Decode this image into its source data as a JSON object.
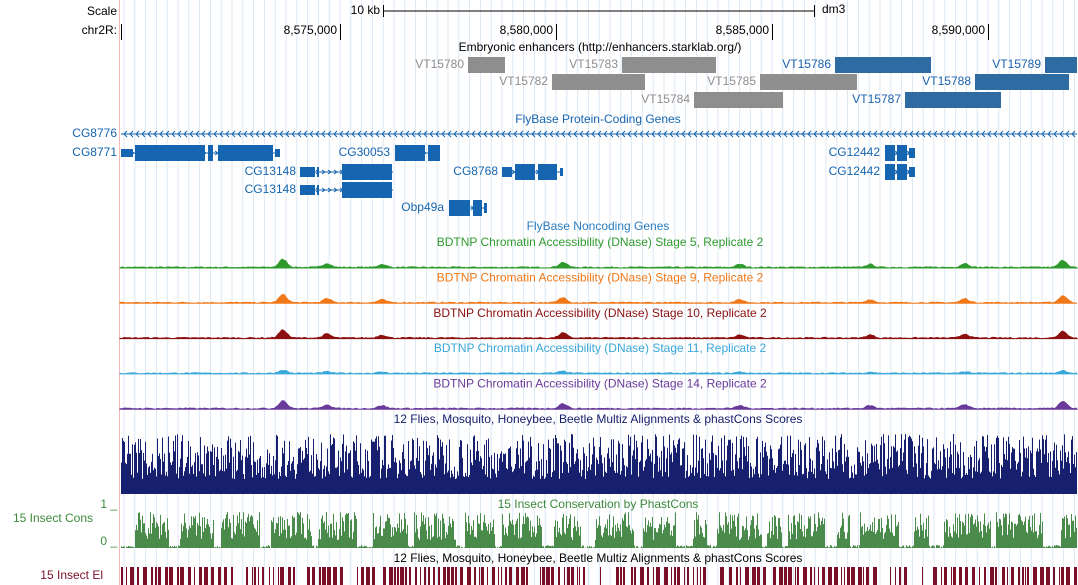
{
  "ruler": {
    "scale_label": "Scale",
    "scale_bar": "10 kb",
    "assembly": "dm3",
    "chrom": "chr2R:",
    "ticks": [
      "8,575,000",
      "8,580,000",
      "8,585,000",
      "8,590,000"
    ]
  },
  "enhancers": {
    "title": "Embryonic enhancers (http://enhancers.starklab.org/)",
    "items": [
      "VT15780",
      "VT15783",
      "VT15786",
      "VT15789",
      "VT15782",
      "VT15785",
      "VT15788",
      "VT15784",
      "VT15787"
    ]
  },
  "genes": {
    "title": "FlyBase Protein-Coding Genes",
    "items": [
      "CG8776",
      "CG8771",
      "CG30053",
      "CG13148",
      "CG8768",
      "CG13148",
      "Obp49a",
      "CG12442",
      "CG12442"
    ]
  },
  "noncoding": {
    "title": "FlyBase Noncoding Genes"
  },
  "dnase": [
    {
      "title": "BDTNP Chromatin Accessibility (DNase) Stage 5, Replicate 2",
      "color": "#2e9a2e"
    },
    {
      "title": "BDTNP Chromatin Accessibility (DNase) Stage 9, Replicate 2",
      "color": "#f07818"
    },
    {
      "title": "BDTNP Chromatin Accessibility (DNase) Stage 10, Replicate 2",
      "color": "#8c1010"
    },
    {
      "title": "BDTNP Chromatin Accessibility (DNase) Stage 11, Replicate 2",
      "color": "#3aa8d8"
    },
    {
      "title": "BDTNP Chromatin Accessibility (DNase) Stage 14, Replicate 2",
      "color": "#6a3a9a"
    }
  ],
  "multiz": {
    "title": "12 Flies, Mosquito, Honeybee, Beetle Multiz Alignments & phastCons Scores"
  },
  "cons": {
    "title": "15 Insect Conservation by PhastCons",
    "side_label": "15 Insect Cons",
    "max_label": "1 _",
    "min_label": "0 _"
  },
  "elements": {
    "title": "12 Flies, Mosquito, Honeybee, Beetle Multiz Alignments & phastCons Scores",
    "side_label": "15 Insect El"
  }
}
